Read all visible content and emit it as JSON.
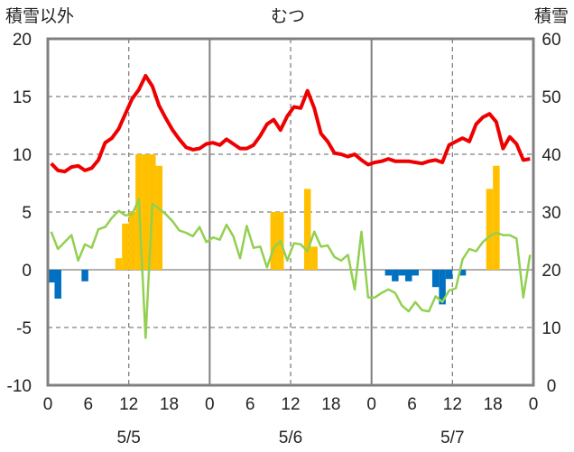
{
  "title": "むつ",
  "left_axis_title": "積雪以外",
  "right_axis_title": "積雪",
  "chart_data": {
    "type": "line",
    "title": "むつ",
    "ylabel_left": "積雪以外",
    "ylabel_right": "積雪",
    "ylim_left": [
      -10,
      20
    ],
    "ylim_right": [
      0,
      60
    ],
    "yticks_left": [
      20,
      15,
      10,
      5,
      0,
      -5,
      -10
    ],
    "yticks_right": [
      60,
      50,
      40,
      30,
      20,
      10,
      0
    ],
    "x_hours": [
      0,
      72
    ],
    "xtick_labels": [
      "0",
      "6",
      "12",
      "18",
      "0",
      "6",
      "12",
      "18",
      "0",
      "6",
      "12",
      "18",
      "0"
    ],
    "day_labels": [
      {
        "label": "5/5",
        "hour": 12
      },
      {
        "label": "5/6",
        "hour": 36
      },
      {
        "label": "5/7",
        "hour": 60
      }
    ],
    "colors": {
      "temperature": "#ee0000",
      "wind": "#92d050",
      "positive_bar": "#ffc000",
      "negative_bar": "#0070c0",
      "grid": "#808080",
      "frame": "#808080"
    },
    "temperature": [
      [
        0,
        9.2
      ],
      [
        1,
        8.6
      ],
      [
        2,
        8.5
      ],
      [
        3,
        8.9
      ],
      [
        4,
        9.0
      ],
      [
        5,
        8.6
      ],
      [
        6,
        8.8
      ],
      [
        7,
        9.5
      ],
      [
        8,
        11.0
      ],
      [
        9,
        11.4
      ],
      [
        10,
        12.2
      ],
      [
        11,
        13.5
      ],
      [
        12,
        14.8
      ],
      [
        13,
        15.6
      ],
      [
        14,
        16.8
      ],
      [
        15,
        15.9
      ],
      [
        16,
        14.2
      ],
      [
        17,
        13.1
      ],
      [
        18,
        12.1
      ],
      [
        19,
        11.3
      ],
      [
        20,
        10.6
      ],
      [
        21,
        10.4
      ],
      [
        22,
        10.5
      ],
      [
        23,
        10.9
      ],
      [
        24,
        11.0
      ],
      [
        25,
        10.8
      ],
      [
        26,
        11.3
      ],
      [
        27,
        10.9
      ],
      [
        28,
        10.5
      ],
      [
        29,
        10.5
      ],
      [
        30,
        10.8
      ],
      [
        31,
        11.6
      ],
      [
        32,
        12.6
      ],
      [
        33,
        13.0
      ],
      [
        34,
        12.1
      ],
      [
        35,
        13.3
      ],
      [
        36,
        14.1
      ],
      [
        37,
        14.0
      ],
      [
        38,
        15.5
      ],
      [
        39,
        14.0
      ],
      [
        40,
        11.8
      ],
      [
        41,
        11.1
      ],
      [
        42,
        10.1
      ],
      [
        43,
        10.0
      ],
      [
        44,
        9.8
      ],
      [
        45,
        10.0
      ],
      [
        46,
        9.5
      ],
      [
        47,
        9.1
      ],
      [
        48,
        9.3
      ],
      [
        49,
        9.4
      ],
      [
        50,
        9.6
      ],
      [
        51,
        9.4
      ],
      [
        52,
        9.4
      ],
      [
        53,
        9.4
      ],
      [
        54,
        9.3
      ],
      [
        55,
        9.2
      ],
      [
        56,
        9.4
      ],
      [
        57,
        9.5
      ],
      [
        58,
        9.3
      ],
      [
        59,
        10.8
      ],
      [
        60,
        11.1
      ],
      [
        61,
        11.4
      ],
      [
        62,
        11.1
      ],
      [
        63,
        12.6
      ],
      [
        64,
        13.2
      ],
      [
        65,
        13.5
      ],
      [
        66,
        12.8
      ],
      [
        67,
        10.5
      ],
      [
        68,
        11.5
      ],
      [
        69,
        10.9
      ],
      [
        70,
        9.5
      ],
      [
        71,
        9.6
      ]
    ],
    "wind": [
      [
        0,
        3.3
      ],
      [
        1,
        1.8
      ],
      [
        2,
        2.4
      ],
      [
        3,
        3.0
      ],
      [
        4,
        0.8
      ],
      [
        5,
        2.2
      ],
      [
        6,
        1.9
      ],
      [
        7,
        3.5
      ],
      [
        8,
        3.7
      ],
      [
        9,
        4.5
      ],
      [
        10,
        5.1
      ],
      [
        11,
        4.7
      ],
      [
        12,
        4.8
      ],
      [
        13,
        6.1
      ],
      [
        14,
        -5.9
      ],
      [
        15,
        5.7
      ],
      [
        16,
        5.3
      ],
      [
        17,
        4.8
      ],
      [
        18,
        4.2
      ],
      [
        19,
        3.4
      ],
      [
        20,
        3.2
      ],
      [
        21,
        2.9
      ],
      [
        22,
        3.7
      ],
      [
        23,
        2.4
      ],
      [
        24,
        2.8
      ],
      [
        25,
        2.6
      ],
      [
        26,
        3.9
      ],
      [
        27,
        2.9
      ],
      [
        28,
        1.0
      ],
      [
        29,
        3.8
      ],
      [
        30,
        1.9
      ],
      [
        31,
        2.0
      ],
      [
        32,
        0.2
      ],
      [
        33,
        1.9
      ],
      [
        34,
        2.5
      ],
      [
        35,
        0.8
      ],
      [
        36,
        2.3
      ],
      [
        37,
        2.2
      ],
      [
        38,
        1.6
      ],
      [
        39,
        3.3
      ],
      [
        40,
        2.0
      ],
      [
        41,
        2.1
      ],
      [
        42,
        1.1
      ],
      [
        43,
        0.8
      ],
      [
        44,
        1.3
      ],
      [
        45,
        -1.7
      ],
      [
        46,
        3.3
      ],
      [
        47,
        -2.4
      ],
      [
        48,
        -2.4
      ],
      [
        49,
        -2.0
      ],
      [
        50,
        -1.7
      ],
      [
        51,
        -2.0
      ],
      [
        52,
        -3.1
      ],
      [
        53,
        -3.6
      ],
      [
        54,
        -2.8
      ],
      [
        55,
        -3.5
      ],
      [
        56,
        -3.6
      ],
      [
        57,
        -2.3
      ],
      [
        58,
        -2.8
      ],
      [
        59,
        -1.8
      ],
      [
        60,
        -1.6
      ],
      [
        61,
        0.9
      ],
      [
        62,
        1.8
      ],
      [
        63,
        1.6
      ],
      [
        64,
        2.4
      ],
      [
        65,
        2.9
      ],
      [
        66,
        3.2
      ],
      [
        67,
        3.0
      ],
      [
        68,
        3.0
      ],
      [
        69,
        2.7
      ],
      [
        70,
        -2.4
      ],
      [
        71,
        1.3
      ]
    ],
    "bars": [
      [
        0,
        -1.1
      ],
      [
        1,
        -2.5
      ],
      [
        5,
        -1.0
      ],
      [
        10,
        1.0
      ],
      [
        11,
        4.0
      ],
      [
        12,
        5.0
      ],
      [
        13,
        10.0
      ],
      [
        14,
        10.0
      ],
      [
        15,
        10.0
      ],
      [
        16,
        9.0
      ],
      [
        33,
        5.0
      ],
      [
        34,
        5.0
      ],
      [
        38,
        7.0
      ],
      [
        39,
        2.0
      ],
      [
        50,
        -0.5
      ],
      [
        51,
        -1.0
      ],
      [
        52,
        -0.5
      ],
      [
        53,
        -1.0
      ],
      [
        54,
        -0.5
      ],
      [
        57,
        -1.5
      ],
      [
        58,
        -3.0
      ],
      [
        59,
        -0.8
      ],
      [
        61,
        -0.5
      ],
      [
        65,
        7.0
      ],
      [
        66,
        9.0
      ]
    ]
  }
}
